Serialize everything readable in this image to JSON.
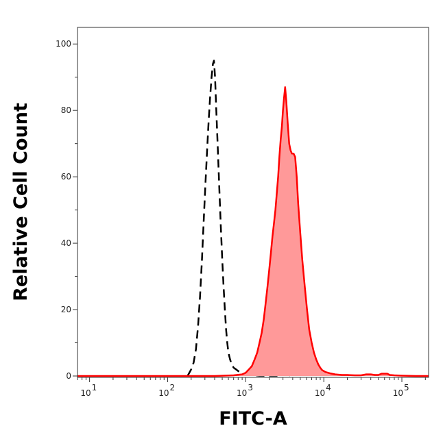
{
  "chart_data": {
    "type": "area",
    "xlabel": "FITC-A",
    "ylabel": "Relative Cell Count",
    "x_scale": "log",
    "xlim": [
      7,
      220000
    ],
    "ylim": [
      0,
      105
    ],
    "grid": false,
    "y_ticks": [
      {
        "value": 0,
        "label": "0"
      },
      {
        "value": 20,
        "label": "20"
      },
      {
        "value": 40,
        "label": "40"
      },
      {
        "value": 60,
        "label": "60"
      },
      {
        "value": 80,
        "label": "80"
      },
      {
        "value": 100,
        "label": "100"
      }
    ],
    "y_minor_step": 10,
    "x_ticks": [
      {
        "value": 10,
        "base": "10",
        "exp": "1"
      },
      {
        "value": 100,
        "base": "10",
        "exp": "2"
      },
      {
        "value": 1000,
        "base": "10",
        "exp": "3"
      },
      {
        "value": 10000,
        "base": "10",
        "exp": "4"
      },
      {
        "value": 100000,
        "base": "10",
        "exp": "5"
      }
    ],
    "series": [
      {
        "style": "dashed",
        "color": "#000000",
        "x": [
          180,
          200,
          215,
          230,
          245,
          260,
          275,
          290,
          305,
          320,
          335,
          350,
          365,
          380,
          392,
          405,
          420,
          440,
          460,
          480,
          500,
          520,
          540,
          560,
          580,
          600,
          630,
          660,
          700,
          750,
          800,
          860,
          920,
          980,
          1050,
          1150,
          1300,
          1500,
          1800,
          2200,
          2700,
          3200,
          3700,
          4200
        ],
        "y": [
          0,
          2,
          4,
          8,
          15,
          24,
          35,
          47,
          58,
          68,
          77,
          84,
          90,
          94,
          95,
          90,
          80,
          68,
          56,
          45,
          35,
          27,
          20,
          14,
          10,
          7,
          5,
          3.5,
          2.5,
          2,
          1.5,
          1,
          0.8,
          0.5,
          0.5,
          0.3,
          0.2,
          0.1,
          0.1,
          0.1,
          0.1,
          0.5,
          0.2,
          0
        ]
      },
      {
        "style": "filled",
        "color": "#ff0000",
        "fill": "#ff9999",
        "x": [
          7,
          15,
          30,
          60,
          100,
          200,
          400,
          700,
          900,
          1000,
          1100,
          1200,
          1300,
          1400,
          1500,
          1600,
          1700,
          1800,
          1900,
          2000,
          2100,
          2200,
          2300,
          2400,
          2500,
          2600,
          2700,
          2800,
          2900,
          3000,
          3100,
          3200,
          3300,
          3450,
          3600,
          3750,
          3900,
          4100,
          4300,
          4500,
          4700,
          5000,
          5300,
          5700,
          6100,
          6500,
          7000,
          7500,
          8000,
          8500,
          9000,
          9500,
          10500,
          12000,
          14000,
          17000,
          20000,
          25000,
          30000,
          35000,
          40000,
          45000,
          50000,
          55000,
          60000,
          65000,
          70000,
          80000,
          100000,
          150000,
          220000
        ],
        "y": [
          0,
          0,
          0,
          0,
          0,
          0,
          0,
          0.2,
          0.5,
          1,
          2,
          3,
          5,
          7,
          10,
          13,
          17,
          22,
          27,
          32,
          37,
          42,
          46,
          50,
          55,
          60,
          66,
          71,
          75,
          80,
          84,
          87,
          83,
          76,
          70,
          68,
          67,
          67,
          66,
          60,
          52,
          43,
          35,
          27,
          20,
          14,
          10,
          7,
          5,
          3.5,
          2.5,
          1.8,
          1.2,
          0.8,
          0.5,
          0.3,
          0.3,
          0.2,
          0.2,
          0.5,
          0.5,
          0.3,
          0.3,
          0.7,
          0.7,
          0.7,
          0.3,
          0.2,
          0.1,
          0,
          0
        ]
      }
    ]
  }
}
